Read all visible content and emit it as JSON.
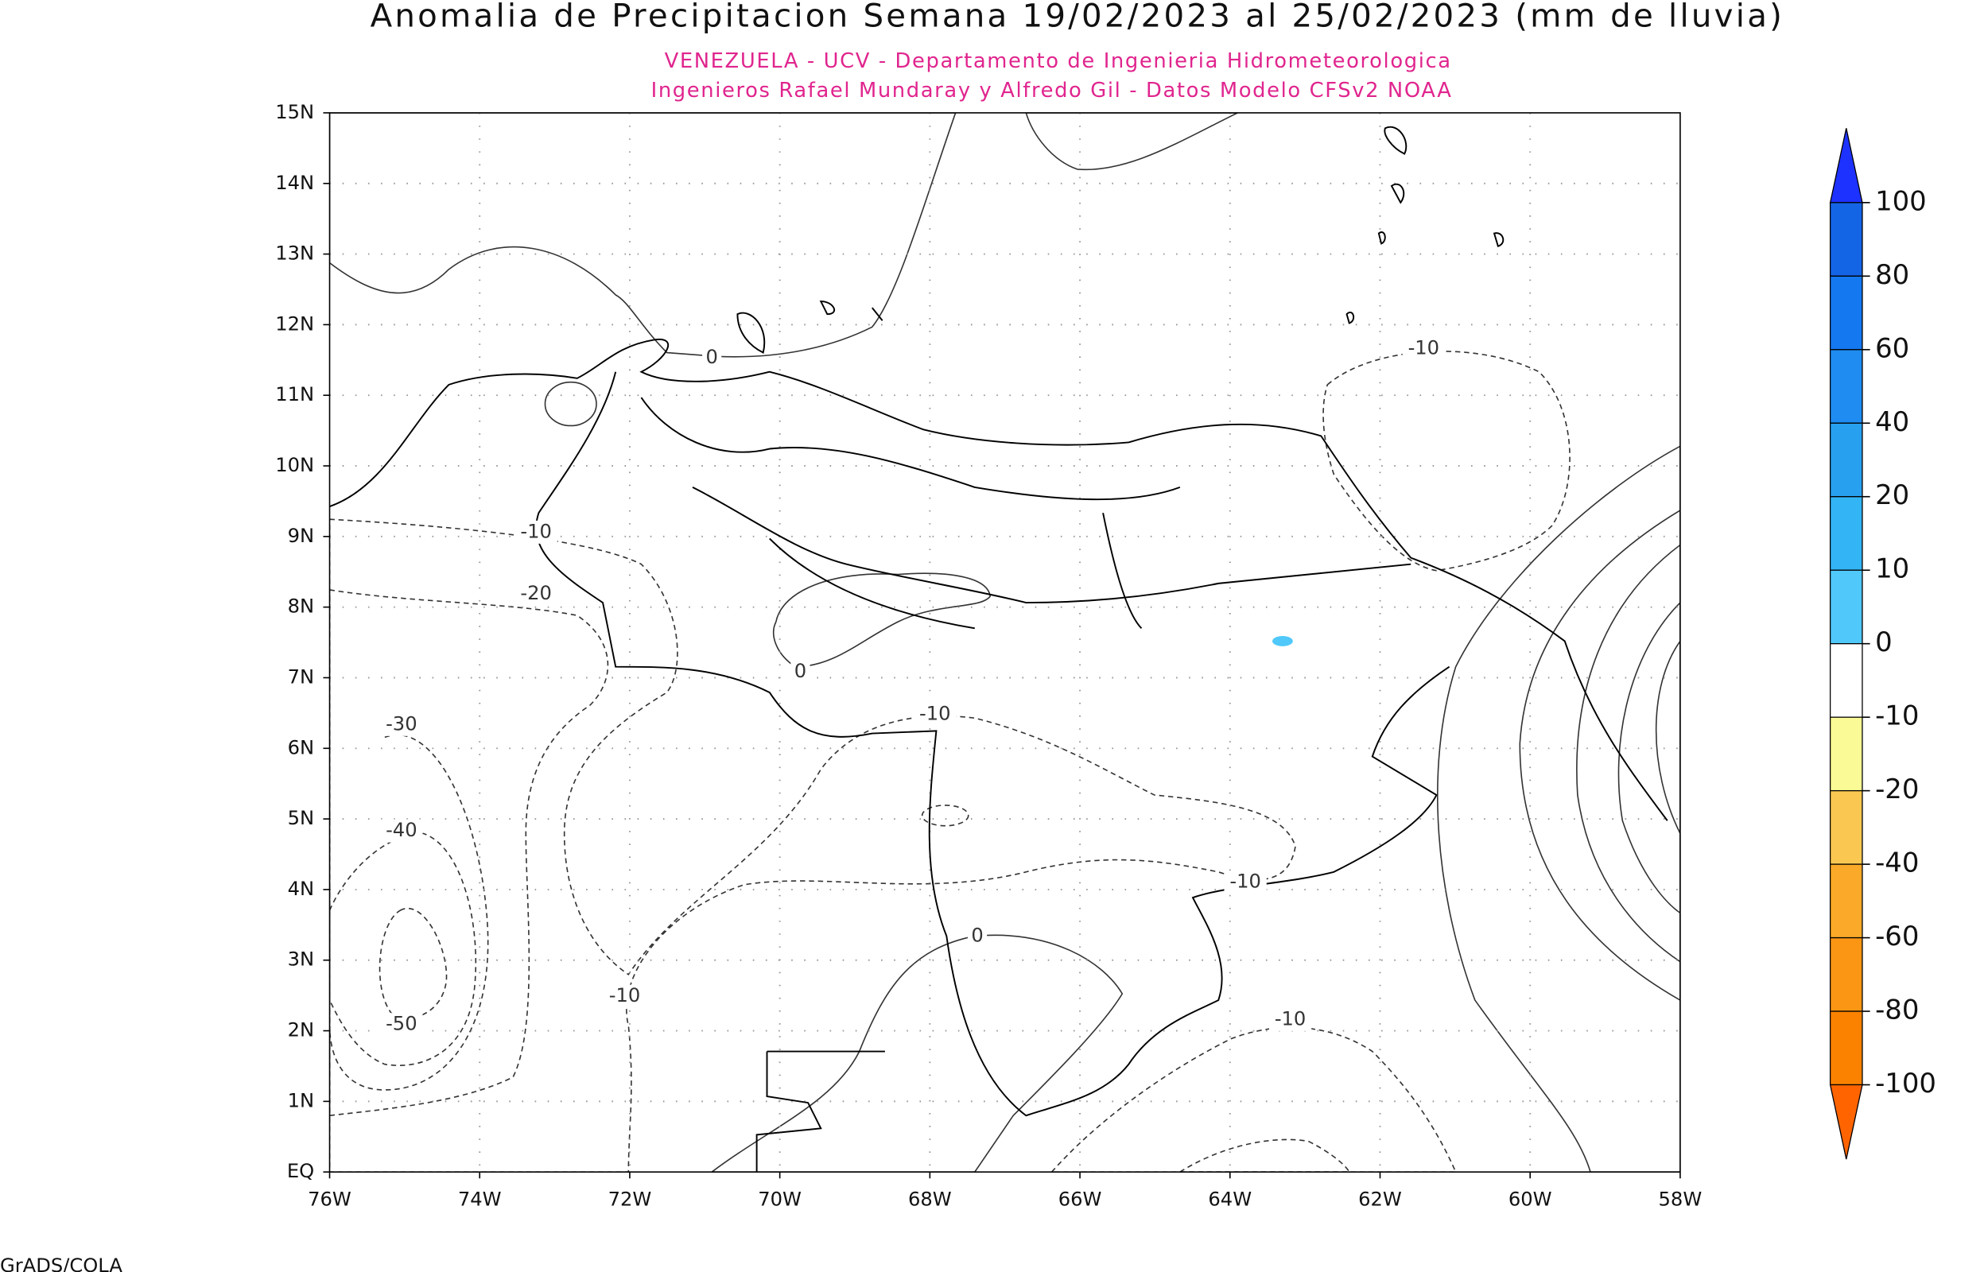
{
  "title": "Anomalia de Precipitacion Semana 19/02/2023 al 25/02/2023 (mm de lluvia)",
  "subtitle": [
    "VENEZUELA - UCV - Departamento de Ingenieria Hidrometeorologica",
    "Ingenieros Rafael Mundaray y Alfredo Gil - Datos Modelo CFSv2 NOAA"
  ],
  "map": {
    "lat_labels": [
      "EQ",
      "1N",
      "2N",
      "3N",
      "4N",
      "5N",
      "6N",
      "7N",
      "8N",
      "9N",
      "10N",
      "11N",
      "12N",
      "13N",
      "14N",
      "15N"
    ],
    "lon_labels": [
      "76W",
      "74W",
      "72W",
      "70W",
      "68W",
      "66W",
      "64W",
      "62W",
      "60W",
      "58W"
    ],
    "contour_labels": [
      0,
      -10,
      -10,
      -20,
      0,
      -10,
      -30,
      -40,
      -10,
      0,
      -10,
      -50,
      -10
    ]
  },
  "colorbar": {
    "labels": [
      100,
      80,
      60,
      40,
      20,
      10,
      0,
      -10,
      -20,
      -40,
      -60,
      -80,
      -100
    ],
    "colors": [
      "#1e32ff",
      "#1464e6",
      "#1478f0",
      "#1e8cf0",
      "#28a0f0",
      "#32b4f5",
      "#50c8fa",
      "#ffffff",
      "#fafa96",
      "#fac850",
      "#faaa28",
      "#fa9614",
      "#fa8200",
      "#ff6400"
    ]
  },
  "footer": "GrADS/COLA"
}
